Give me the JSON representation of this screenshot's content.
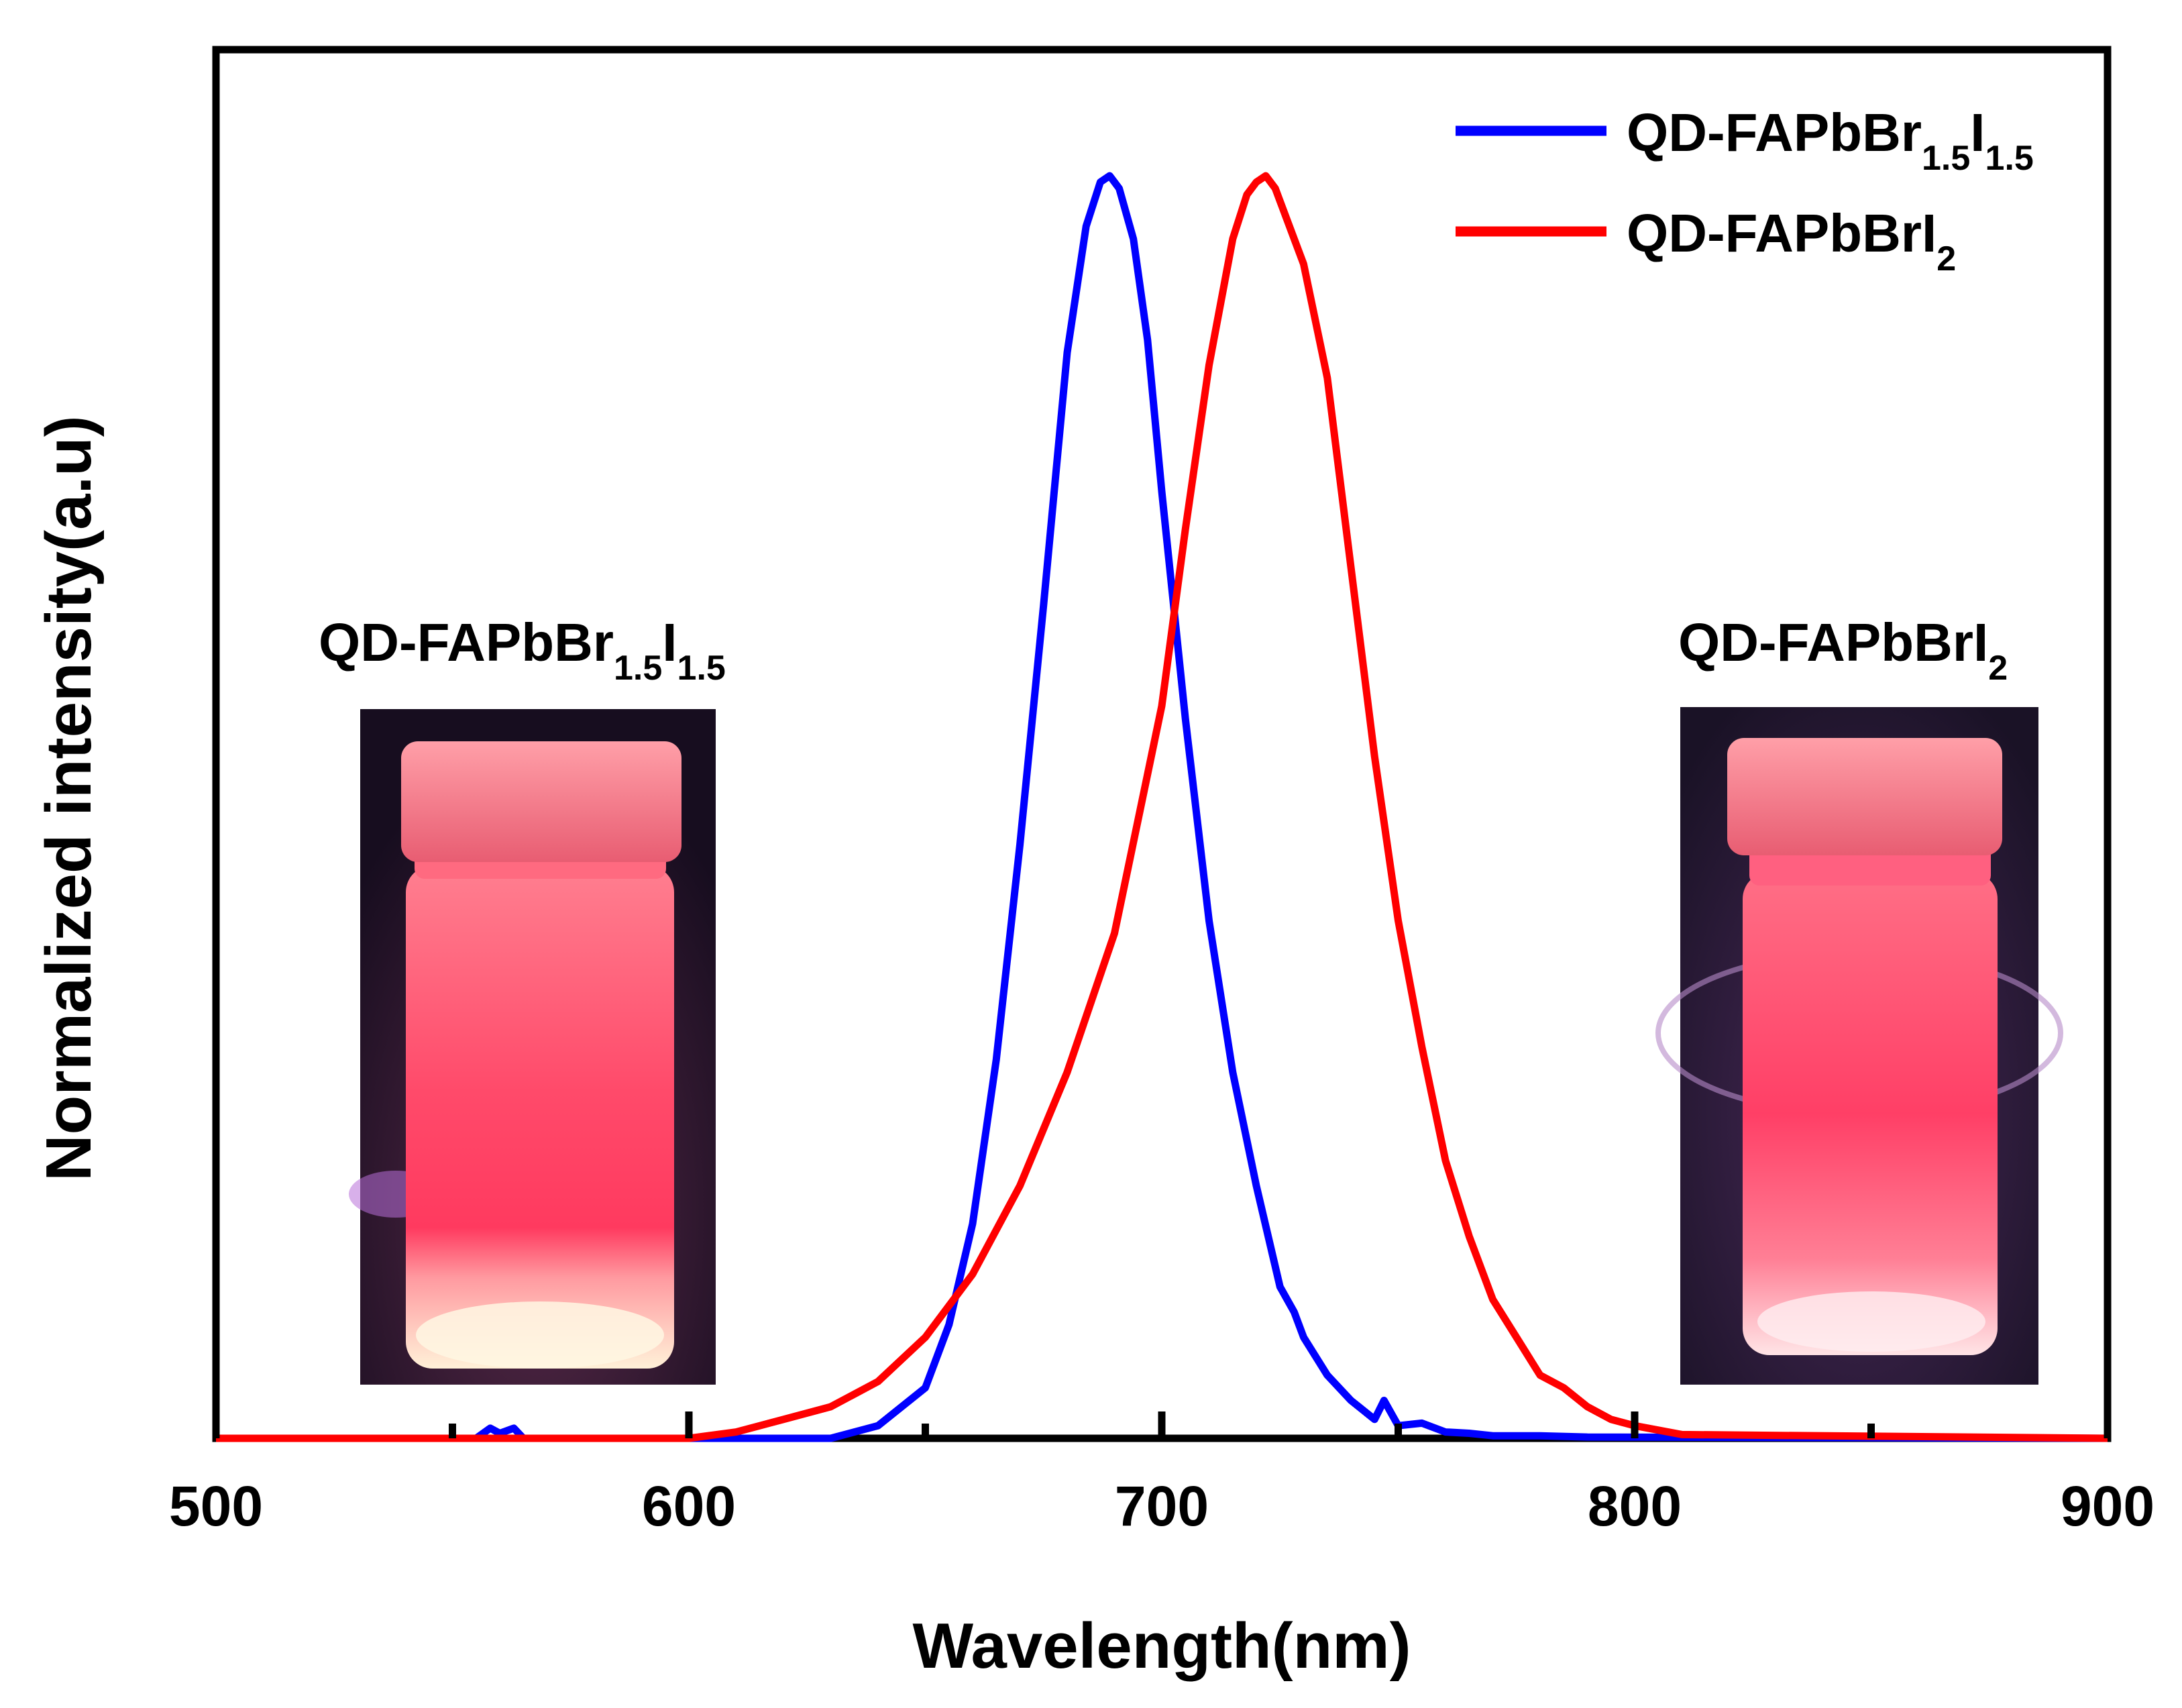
{
  "chart_data": {
    "type": "line",
    "title": "",
    "xlabel": "Wavelength(nm)",
    "ylabel": "Normalized intensity(a.u)",
    "xlim": [
      500,
      900
    ],
    "ylim": [
      0,
      1.1
    ],
    "x_ticks": [
      "500",
      "600",
      "700",
      "800",
      "900"
    ],
    "x_minor_ticks": [
      550,
      650,
      750,
      850
    ],
    "grid": false,
    "legend_position": "top-right",
    "series": [
      {
        "name": "QD-FAPbBr1.5I1.5",
        "label_main": "QD-FAPbBr",
        "label_sub1": "1.5",
        "label_mid": "I",
        "label_sub2": "1.5",
        "color": "#0000ff",
        "x": [
          500,
          555,
          558,
          560,
          563,
          565,
          600,
          630,
          640,
          650,
          655,
          660,
          665,
          670,
          675,
          680,
          684,
          687,
          689,
          691,
          694,
          697,
          700,
          705,
          710,
          715,
          720,
          725,
          728,
          730,
          735,
          740,
          745,
          747,
          750,
          755,
          760,
          765,
          770,
          780,
          790,
          900
        ],
        "y": [
          0,
          0,
          0.008,
          0.004,
          0.008,
          0,
          0,
          0,
          0.01,
          0.04,
          0.09,
          0.17,
          0.3,
          0.47,
          0.66,
          0.86,
          0.96,
          0.995,
          1.0,
          0.99,
          0.95,
          0.87,
          0.75,
          0.57,
          0.41,
          0.29,
          0.2,
          0.12,
          0.1,
          0.08,
          0.05,
          0.03,
          0.015,
          0.03,
          0.01,
          0.012,
          0.005,
          0.004,
          0.002,
          0.002,
          0.001,
          0
        ]
      },
      {
        "name": "QD-FAPbBrI2",
        "label_main": "QD-FAPbBrI",
        "label_sub1": "2",
        "label_mid": "",
        "label_sub2": "",
        "color": "#ff0000",
        "x": [
          500,
          600,
          610,
          615,
          620,
          630,
          640,
          650,
          660,
          670,
          680,
          690,
          700,
          705,
          710,
          715,
          718,
          720,
          722,
          724,
          726,
          730,
          735,
          740,
          745,
          750,
          755,
          760,
          765,
          770,
          775,
          780,
          785,
          790,
          795,
          800,
          810,
          900
        ],
        "y": [
          0,
          0,
          0.005,
          0.01,
          0.015,
          0.025,
          0.045,
          0.08,
          0.13,
          0.2,
          0.29,
          0.4,
          0.58,
          0.72,
          0.85,
          0.95,
          0.985,
          0.995,
          1.0,
          0.99,
          0.97,
          0.93,
          0.84,
          0.69,
          0.54,
          0.41,
          0.31,
          0.22,
          0.16,
          0.11,
          0.08,
          0.05,
          0.04,
          0.025,
          0.015,
          0.01,
          0.003,
          0
        ]
      }
    ],
    "insets": [
      {
        "label_main": "QD-FAPbBr",
        "label_sub1": "1.5",
        "label_mid": "I",
        "label_sub2": "1.5",
        "description": "photo of glowing red vial under UV light"
      },
      {
        "label_main": "QD-FAPbBrI",
        "label_sub1": "2",
        "label_mid": "",
        "label_sub2": "",
        "description": "photo of glowing red vial under UV light"
      }
    ]
  },
  "colors": {
    "axis": "#000000",
    "blue_series": "#0000ff",
    "red_series": "#ff0000",
    "photo_background": "#1a0f22",
    "vial_glow": "#ff4466"
  }
}
